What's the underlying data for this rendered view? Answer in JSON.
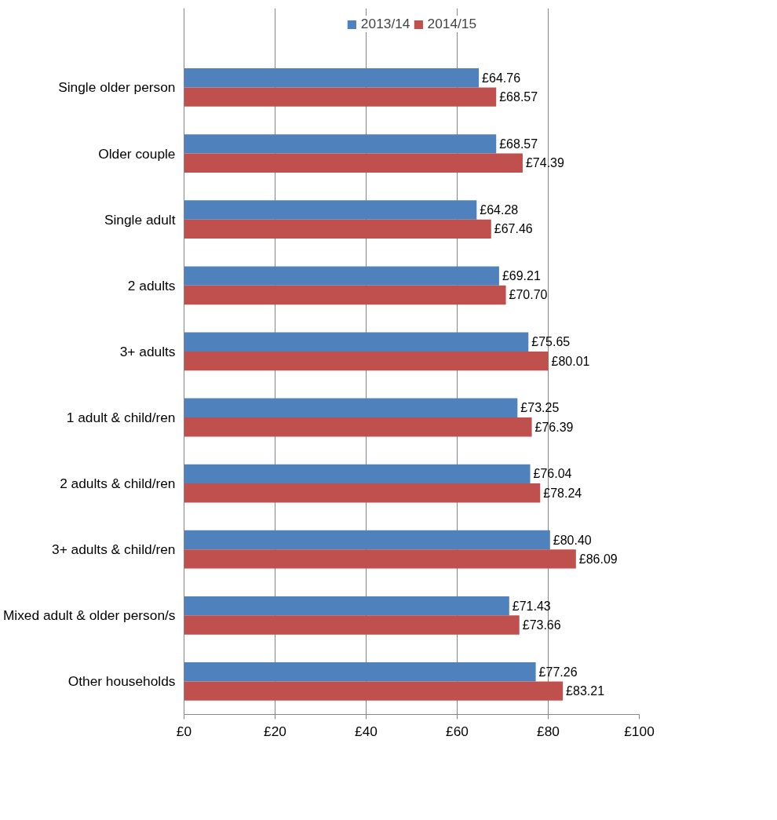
{
  "chart_data": {
    "type": "bar",
    "orientation": "horizontal",
    "categories": [
      "Single older person",
      "Older couple",
      "Single adult",
      "2 adults",
      "3+ adults",
      "1 adult & child/ren",
      "2 adults & child/ren",
      "3+ adults & child/ren",
      "Mixed adult & older person/s",
      "Other households"
    ],
    "series": [
      {
        "name": "2013/14",
        "color": "#4f81bd",
        "values": [
          64.76,
          68.57,
          64.28,
          69.21,
          75.65,
          73.25,
          76.04,
          80.4,
          71.43,
          77.26
        ],
        "value_labels": [
          "£64.76",
          "£68.57",
          "£64.28",
          "£69.21",
          "£75.65",
          "£73.25",
          "£76.04",
          "£80.40",
          "£71.43",
          "£77.26"
        ]
      },
      {
        "name": "2014/15",
        "color": "#c0504d",
        "values": [
          68.57,
          74.39,
          67.46,
          70.7,
          80.01,
          76.39,
          78.24,
          86.09,
          73.66,
          83.21
        ],
        "value_labels": [
          "£68.57",
          "£74.39",
          "£67.46",
          "£70.70",
          "£80.01",
          "£76.39",
          "£78.24",
          "£86.09",
          "£73.66",
          "£83.21"
        ]
      }
    ],
    "xlim": [
      0,
      100
    ],
    "xticks": [
      {
        "value": 0,
        "label": "£0"
      },
      {
        "value": 20,
        "label": "£20"
      },
      {
        "value": 40,
        "label": "£40"
      },
      {
        "value": 60,
        "label": "£60"
      },
      {
        "value": 80,
        "label": "£80"
      },
      {
        "value": 100,
        "label": "£100"
      }
    ],
    "grid": "x",
    "legend": "top"
  }
}
